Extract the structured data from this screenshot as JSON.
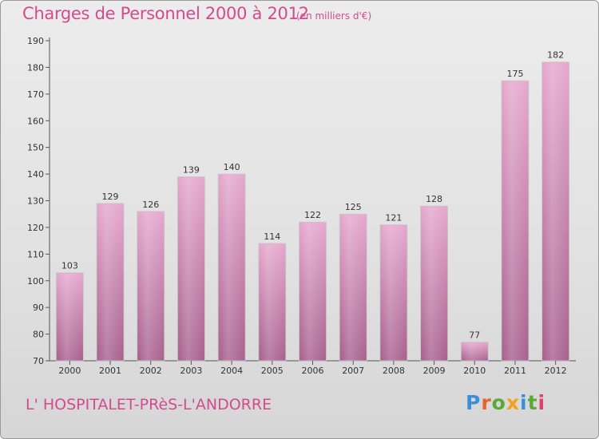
{
  "header": {
    "title": "Charges de Personnel 2000 à 2012",
    "subtitle": "(en milliers d'€)"
  },
  "footer": {
    "commune": "L' HOSPITALET-PRèS-L'ANDORRE",
    "logo_letters": [
      "P",
      "r",
      "o",
      "x",
      "i",
      "t",
      "i"
    ]
  },
  "colors": {
    "accent": "#d44a8f",
    "bar_light": "#e4a5cb",
    "bar_dark": "#a8638f"
  },
  "chart_data": {
    "type": "bar",
    "title": "Charges de Personnel 2000 à 2012",
    "subtitle": "(en milliers d'€)",
    "xlabel": "",
    "ylabel": "",
    "categories": [
      "2000",
      "2001",
      "2002",
      "2003",
      "2004",
      "2005",
      "2006",
      "2007",
      "2008",
      "2009",
      "2010",
      "2011",
      "2012"
    ],
    "values": [
      103,
      129,
      126,
      139,
      140,
      114,
      122,
      125,
      121,
      128,
      77,
      175,
      182
    ],
    "ylim": [
      70,
      190
    ],
    "yticks": [
      70,
      80,
      90,
      100,
      110,
      120,
      130,
      140,
      150,
      160,
      170,
      180,
      190
    ],
    "grid": false,
    "legend": "none"
  }
}
